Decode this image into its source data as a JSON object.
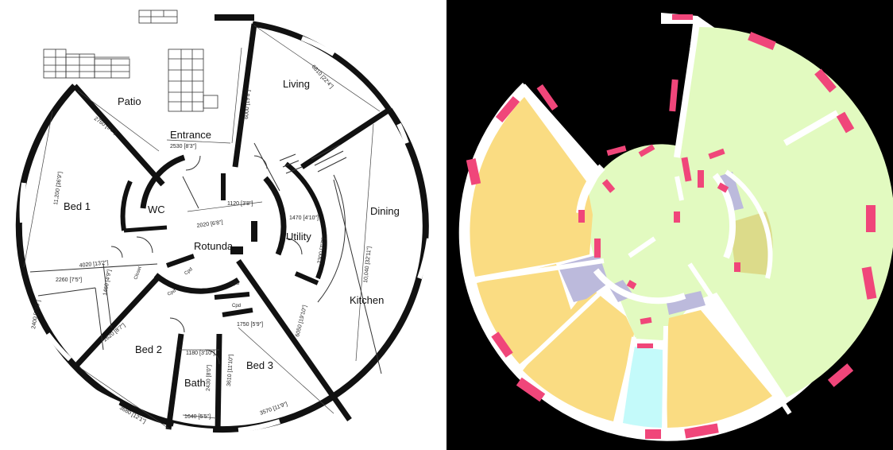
{
  "floorplan": {
    "rooms": {
      "patio": "Patio",
      "living": "Living",
      "entrance": "Entrance",
      "bed1": "Bed 1",
      "wc": "WC",
      "rotunda": "Rotunda",
      "utility": "Utility",
      "dining": "Dining",
      "kitchen": "Kitchen",
      "bed2": "Bed 2",
      "bath": "Bath",
      "bed3": "Bed 3",
      "closet": "Closet",
      "cpd1": "Cpd",
      "cpd2": "Cpd",
      "cpd3": "Cpd",
      "cpd4": "Cpd"
    },
    "dimensions": {
      "d1": "2530 [8'3\"]",
      "d2": "2760 [9'1\"]",
      "d3": "11,200 [36'9\"]",
      "d4": "6810 [22'4\"]",
      "d5": "6000 [19'8\"]",
      "d6": "1120 [3'8\"]",
      "d7": "2020 [6'8\"]",
      "d8": "1470 [4'10\"]",
      "d9": "2300 [7'7\"]",
      "d10": "10,040 [32'11\"]",
      "d11": "2260 [7'5\"]",
      "d12": "1460 [4'9\"]",
      "d13": "2400 [7'10\"]",
      "d14": "2620 [8'7\"]",
      "d15": "3680 [12'1\"]",
      "d16": "1180 [3'10\"]",
      "d17": "2430 [8'0\"]",
      "d18": "1640 [5'5\"]",
      "d19": "3610 [11'10\"]",
      "d20": "3570 [11'9\"]",
      "d21": "1750 [5'9\"]",
      "d22": "6050 [19'10\"]",
      "d23": "4020 [13'2\"]"
    }
  },
  "colors": {
    "bedroom": "#fadc82",
    "living": "#e2fac0",
    "hall": "#e2fac0",
    "bath": "#c4fafa",
    "storage": "#bcbadc",
    "utility": "#dcdb8a",
    "wall": "#ffffff",
    "door": "#f0467a",
    "window": "#f0467a",
    "background": "#000000"
  }
}
